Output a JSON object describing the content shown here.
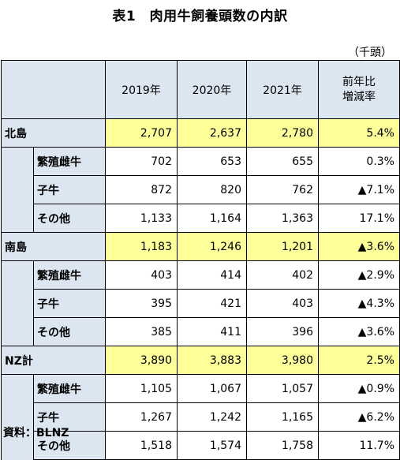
{
  "title": "表1　肉用牛飼養頭数の内訳",
  "unit": "（千頭）",
  "header": {
    "years": [
      "2019年",
      "2020年",
      "2021年"
    ],
    "change_line1": "前年比",
    "change_line2": "増減率"
  },
  "regions": [
    {
      "name": "北島",
      "total": [
        "2,707",
        "2,637",
        "2,780",
        "5.4%"
      ],
      "rows": [
        {
          "label": "繁殖雌牛",
          "values": [
            "702",
            "653",
            "655",
            "0.3%"
          ]
        },
        {
          "label": "子牛",
          "values": [
            "872",
            "820",
            "762",
            "▲7.1%"
          ]
        },
        {
          "label": "その他",
          "values": [
            "1,133",
            "1,164",
            "1,363",
            "17.1%"
          ]
        }
      ]
    },
    {
      "name": "南島",
      "total": [
        "1,183",
        "1,246",
        "1,201",
        "▲3.6%"
      ],
      "rows": [
        {
          "label": "繁殖雌牛",
          "values": [
            "403",
            "414",
            "402",
            "▲2.9%"
          ]
        },
        {
          "label": "子牛",
          "values": [
            "395",
            "421",
            "403",
            "▲4.3%"
          ]
        },
        {
          "label": "その他",
          "values": [
            "385",
            "411",
            "396",
            "▲3.6%"
          ]
        }
      ]
    },
    {
      "name": "NZ計",
      "total": [
        "3,890",
        "3,883",
        "3,980",
        "2.5%"
      ],
      "rows": [
        {
          "label": "繁殖雌牛",
          "values": [
            "1,105",
            "1,067",
            "1,057",
            "▲0.9%"
          ]
        },
        {
          "label": "子牛",
          "values": [
            "1,267",
            "1,242",
            "1,165",
            "▲6.2%"
          ]
        },
        {
          "label": "その他",
          "values": [
            "1,518",
            "1,574",
            "1,758",
            "11.7%"
          ]
        }
      ]
    }
  ],
  "source": "資料：BLNZ",
  "colors": {
    "header_bg": "#dce6f1",
    "total_bg": "#ffff99"
  }
}
